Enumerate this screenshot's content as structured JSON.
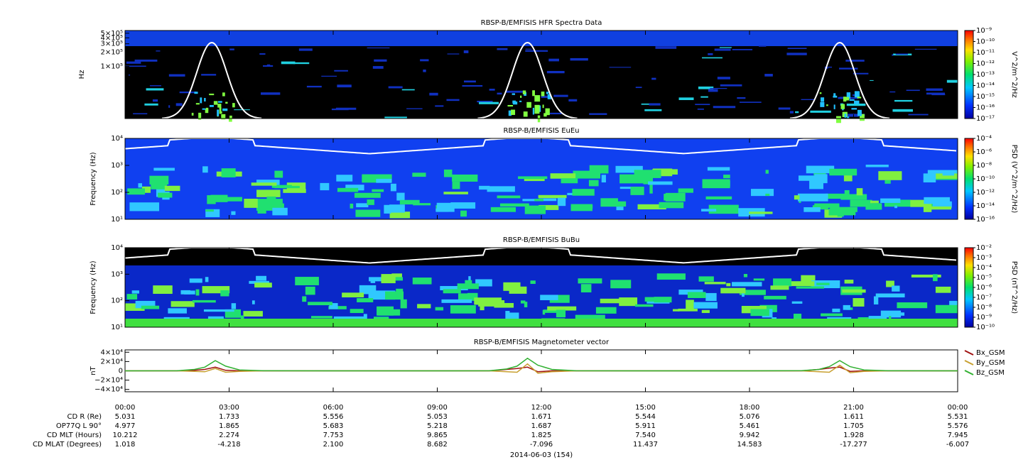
{
  "chart_data": [
    {
      "type": "spectrogram",
      "title": "RBSP-B/EMFISIS  HFR Spectra Data",
      "ylabel": "Hz",
      "ylog": true,
      "ylim": [
        8000,
        570000
      ],
      "yticks": [
        {
          "value": 100000,
          "label": "1×10⁵"
        },
        {
          "value": 200000,
          "label": "2×10⁵"
        },
        {
          "value": 300000,
          "label": "3×10⁵"
        },
        {
          "value": 400000,
          "label": "4×10⁵"
        },
        {
          "value": 500000,
          "label": "5×10⁵"
        }
      ],
      "zlabel": "V^2/m^2/Hz",
      "zlog": true,
      "zlim": [
        1e-17,
        1e-09
      ],
      "zticks": [
        {
          "value": 1e-17,
          "label": "10⁻¹⁷"
        },
        {
          "value": 1e-16,
          "label": "10⁻¹⁶"
        },
        {
          "value": 1e-15,
          "label": "10⁻¹⁵"
        },
        {
          "value": 1e-14,
          "label": "10⁻¹⁴"
        },
        {
          "value": 1e-13,
          "label": "10⁻¹³"
        },
        {
          "value": 1e-12,
          "label": "10⁻¹²"
        },
        {
          "value": 1e-11,
          "label": "10⁻¹¹"
        },
        {
          "value": 1e-10,
          "label": "10⁻¹⁰"
        },
        {
          "value": 1e-09,
          "label": "10⁻⁹"
        }
      ]
    },
    {
      "type": "spectrogram",
      "title": "RBSP-B/EMFISIS  EuEu",
      "ylabel": "Frequency (Hz)",
      "ylog": true,
      "ylim": [
        10,
        10000
      ],
      "yticks": [
        {
          "value": 10,
          "label": "10¹"
        },
        {
          "value": 100,
          "label": "10²"
        },
        {
          "value": 1000,
          "label": "10³"
        },
        {
          "value": 10000,
          "label": "10⁴"
        }
      ],
      "zlabel": "PSD (V^2/m^2/Hz)",
      "zlog": true,
      "zlim": [
        1e-16,
        0.0001
      ],
      "zticks": [
        {
          "value": 1e-16,
          "label": "10⁻¹⁶"
        },
        {
          "value": 1e-14,
          "label": "10⁻¹⁴"
        },
        {
          "value": 1e-12,
          "label": "10⁻¹²"
        },
        {
          "value": 1e-10,
          "label": "10⁻¹⁰"
        },
        {
          "value": 1e-08,
          "label": "10⁻⁸"
        },
        {
          "value": 1e-06,
          "label": "10⁻⁶"
        },
        {
          "value": 0.0001,
          "label": "10⁻⁴"
        }
      ]
    },
    {
      "type": "spectrogram",
      "title": "RBSP-B/EMFISIS  BuBu",
      "ylabel": "Frequency (Hz)",
      "ylog": true,
      "ylim": [
        10,
        10000
      ],
      "yticks": [
        {
          "value": 10,
          "label": "10¹"
        },
        {
          "value": 100,
          "label": "10²"
        },
        {
          "value": 1000,
          "label": "10³"
        },
        {
          "value": 10000,
          "label": "10⁴"
        }
      ],
      "zlabel": "PSD (nT^2/Hz)",
      "zlog": true,
      "zlim": [
        1e-10,
        0.01
      ],
      "zticks": [
        {
          "value": 1e-10,
          "label": "10⁻¹⁰"
        },
        {
          "value": 1e-09,
          "label": "10⁻⁹"
        },
        {
          "value": 1e-08,
          "label": "10⁻⁸"
        },
        {
          "value": 1e-07,
          "label": "10⁻⁷"
        },
        {
          "value": 1e-06,
          "label": "10⁻⁶"
        },
        {
          "value": 1e-05,
          "label": "10⁻⁵"
        },
        {
          "value": 0.0001,
          "label": "10⁻⁴"
        },
        {
          "value": 0.001,
          "label": "10⁻³"
        },
        {
          "value": 0.01,
          "label": "10⁻²"
        }
      ]
    },
    {
      "type": "line",
      "title": "RBSP-B/EMFISIS  Magnetometer vector",
      "ylabel": "nT",
      "xlabel": "2014-06-03 (154)",
      "ylim": [
        -45000,
        45000
      ],
      "yticks": [
        {
          "value": -40000,
          "label": "−4×10⁴"
        },
        {
          "value": -20000,
          "label": "−2×10⁴"
        },
        0,
        {
          "value": 20000,
          "label": "2×10⁴"
        },
        {
          "value": 40000,
          "label": "4×10⁴"
        }
      ],
      "xlim": [
        0,
        24
      ],
      "xticks": [
        {
          "value": 0,
          "label": "00:00"
        },
        {
          "value": 3,
          "label": "03:00"
        },
        {
          "value": 6,
          "label": "06:00"
        },
        {
          "value": 9,
          "label": "09:00"
        },
        {
          "value": 12,
          "label": "12:00"
        },
        {
          "value": 15,
          "label": "15:00"
        },
        {
          "value": 18,
          "label": "18:00"
        },
        {
          "value": 21,
          "label": "21:00"
        },
        {
          "value": 24,
          "label": "00:00"
        }
      ],
      "x": [
        0,
        1.5,
        2,
        2.3,
        2.6,
        2.9,
        3.3,
        4,
        6,
        9,
        10.5,
        11,
        11.3,
        11.6,
        11.9,
        12.3,
        13,
        15,
        18,
        19.5,
        20,
        20.3,
        20.6,
        20.9,
        21.3,
        22,
        24
      ],
      "legend": "right",
      "series": [
        {
          "name": "Bx_GSM",
          "color": "#a01010",
          "values": [
            0,
            0,
            1000,
            3000,
            8000,
            1000,
            0,
            0,
            0,
            0,
            0,
            3000,
            5000,
            8000,
            -2000,
            0,
            0,
            0,
            0,
            0,
            3000,
            6000,
            8000,
            -1000,
            0,
            0,
            0
          ]
        },
        {
          "name": "By_GSM",
          "color": "#c8a030",
          "values": [
            0,
            0,
            -1000,
            -2000,
            5000,
            -3000,
            -1000,
            0,
            0,
            0,
            0,
            -2000,
            -3000,
            15000,
            -5000,
            -2000,
            0,
            0,
            0,
            0,
            -2000,
            -3000,
            12000,
            -4000,
            -1000,
            0,
            0
          ]
        },
        {
          "name": "Bz_GSM",
          "color": "#30b030",
          "values": [
            0,
            100,
            3000,
            8000,
            22000,
            10000,
            2000,
            200,
            0,
            0,
            200,
            4000,
            10000,
            27000,
            12000,
            3000,
            200,
            0,
            0,
            300,
            3000,
            9000,
            22000,
            9000,
            2000,
            200,
            0
          ]
        }
      ]
    }
  ],
  "ephemeris": {
    "rows": [
      {
        "label": "CD R (Re)",
        "values": [
          "5.031",
          "1.733",
          "5.556",
          "5.053",
          "1.671",
          "5.544",
          "5.076",
          "1.611",
          "5.531"
        ]
      },
      {
        "label": "OP77Q L 90°",
        "values": [
          "4.977",
          "1.865",
          "5.683",
          "5.218",
          "1.687",
          "5.911",
          "5.461",
          "1.705",
          "5.576"
        ]
      },
      {
        "label": "CD MLT (Hours)",
        "values": [
          "10.212",
          "2.274",
          "7.753",
          "9.865",
          "1.825",
          "7.540",
          "9.942",
          "1.928",
          "7.945"
        ]
      },
      {
        "label": "CD MLAT (Degrees)",
        "values": [
          "1.018",
          "-4.218",
          "2.100",
          "8.682",
          "-7.096",
          "11.437",
          "14.583",
          "-17.277",
          "-6.007"
        ]
      }
    ]
  }
}
